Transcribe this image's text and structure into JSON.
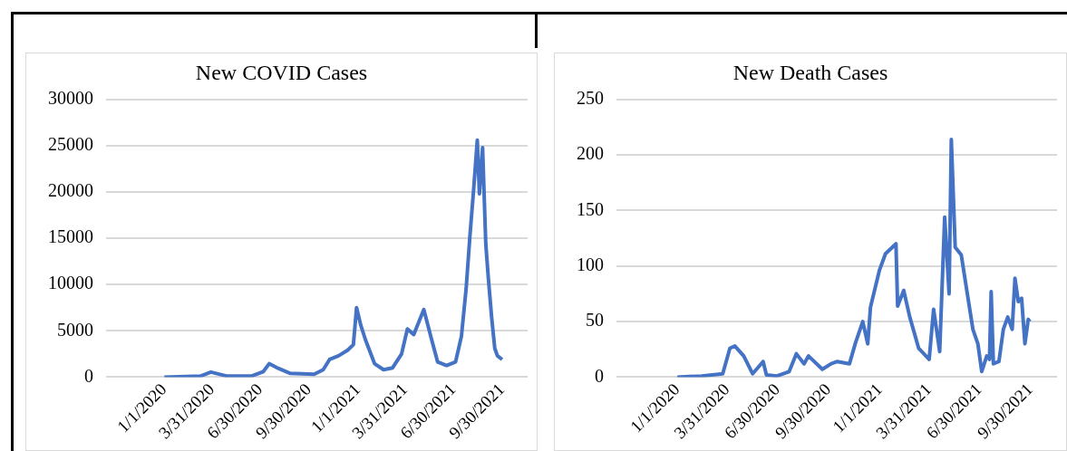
{
  "chart_data": [
    {
      "type": "line",
      "title": "New COVID Cases",
      "color": "#4472c4",
      "marker": "none",
      "grid": "y",
      "x": [
        "2020-01-01",
        "2020-03-09",
        "2020-03-29",
        "2020-04-15",
        "2020-04-29",
        "2020-06-13",
        "2020-07-06",
        "2020-07-17",
        "2020-08-03",
        "2020-08-26",
        "2020-10-10",
        "2020-10-27",
        "2020-11-08",
        "2020-11-25",
        "2020-12-12",
        "2020-12-23",
        "2020-12-29",
        "2021-01-06",
        "2021-01-15",
        "2021-02-01",
        "2021-02-18",
        "2021-03-07",
        "2021-03-24",
        "2021-04-04",
        "2021-04-16",
        "2021-05-05",
        "2021-05-20",
        "2021-05-31",
        "2021-06-17",
        "2021-07-04",
        "2021-07-15",
        "2021-07-24",
        "2021-07-31",
        "2021-08-07",
        "2021-08-14",
        "2021-08-18",
        "2021-08-24",
        "2021-08-30",
        "2021-09-04",
        "2021-09-10",
        "2021-09-16",
        "2021-09-21",
        "2021-09-30"
      ],
      "values": [
        0,
        100,
        540,
        300,
        100,
        100,
        600,
        1450,
        950,
        400,
        300,
        800,
        1900,
        2300,
        2900,
        3500,
        7500,
        5600,
        4000,
        1450,
        800,
        1000,
        2500,
        5200,
        4600,
        7300,
        4000,
        1650,
        1250,
        1650,
        4400,
        9600,
        15200,
        20200,
        25600,
        19800,
        24800,
        14400,
        10600,
        6500,
        3100,
        2300,
        1900
      ],
      "xlim": [
        "2019-09-13",
        "2021-11-17"
      ],
      "xticks": [
        {
          "value": "2020-01-01",
          "label": "1/1/2020"
        },
        {
          "value": "2020-03-31",
          "label": "3/31/2020"
        },
        {
          "value": "2020-06-30",
          "label": "6/30/2020"
        },
        {
          "value": "2020-09-30",
          "label": "9/30/2020"
        },
        {
          "value": "2021-01-01",
          "label": "1/1/2021"
        },
        {
          "value": "2021-03-31",
          "label": "3/31/2021"
        },
        {
          "value": "2021-06-30",
          "label": "6/30/2021"
        },
        {
          "value": "2021-09-30",
          "label": "9/30/2021"
        }
      ],
      "ylim": [
        0,
        30000
      ],
      "yticks": [
        0,
        5000,
        10000,
        15000,
        20000,
        25000,
        30000
      ]
    },
    {
      "type": "line",
      "title": "New Death Cases",
      "color": "#4472c4",
      "marker": "none",
      "grid": "y",
      "x": [
        "2020-01-01",
        "2020-02-14",
        "2020-03-23",
        "2020-04-05",
        "2020-04-14",
        "2020-04-30",
        "2020-05-16",
        "2020-06-04",
        "2020-06-10",
        "2020-06-29",
        "2020-07-21",
        "2020-08-03",
        "2020-08-17",
        "2020-08-25",
        "2020-09-19",
        "2020-10-05",
        "2020-10-16",
        "2020-11-07",
        "2020-11-18",
        "2020-12-01",
        "2020-12-10",
        "2020-12-15",
        "2020-12-31",
        "2021-01-11",
        "2021-01-30",
        "2021-02-02",
        "2021-02-13",
        "2021-02-24",
        "2021-03-12",
        "2021-03-31",
        "2021-04-08",
        "2021-04-19",
        "2021-04-28",
        "2021-05-06",
        "2021-05-10",
        "2021-05-17",
        "2021-05-28",
        "2021-06-07",
        "2021-06-18",
        "2021-06-27",
        "2021-07-04",
        "2021-07-13",
        "2021-07-18",
        "2021-07-21",
        "2021-07-25",
        "2021-08-04",
        "2021-08-12",
        "2021-08-20",
        "2021-08-28",
        "2021-09-02",
        "2021-09-08",
        "2021-09-14",
        "2021-09-20",
        "2021-09-26",
        "2021-09-29"
      ],
      "values": [
        0,
        1,
        3,
        26,
        28,
        19,
        3,
        14,
        2,
        1,
        5,
        21,
        12,
        19,
        7,
        12,
        14,
        12,
        31,
        50,
        30,
        63,
        96,
        111,
        120,
        64,
        78,
        54,
        26,
        16,
        61,
        23,
        144,
        75,
        214,
        117,
        110,
        78,
        43,
        30,
        5,
        19,
        16,
        77,
        12,
        14,
        43,
        54,
        43,
        89,
        68,
        71,
        30,
        52,
        50
      ],
      "xlim": [
        "2019-09-13",
        "2021-11-17"
      ],
      "xticks": [
        {
          "value": "2020-01-01",
          "label": "1/1/2020"
        },
        {
          "value": "2020-03-31",
          "label": "3/31/2020"
        },
        {
          "value": "2020-06-30",
          "label": "6/30/2020"
        },
        {
          "value": "2020-09-30",
          "label": "9/30/2020"
        },
        {
          "value": "2021-01-01",
          "label": "1/1/2021"
        },
        {
          "value": "2021-03-31",
          "label": "3/31/2021"
        },
        {
          "value": "2021-06-30",
          "label": "6/30/2021"
        },
        {
          "value": "2021-09-30",
          "label": "9/30/2021"
        }
      ],
      "ylim": [
        0,
        250
      ],
      "yticks": [
        0,
        50,
        100,
        150,
        200,
        250
      ]
    }
  ]
}
